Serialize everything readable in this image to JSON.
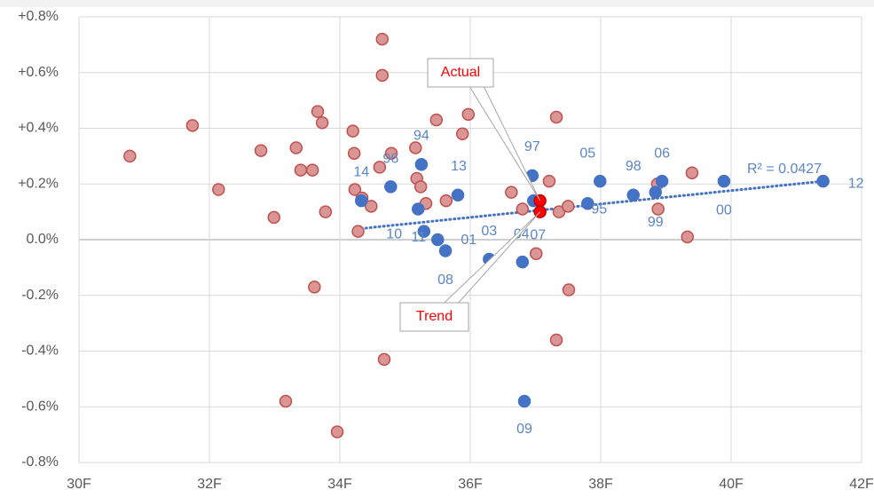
{
  "chart_data": {
    "type": "scatter",
    "xlim": [
      30,
      42
    ],
    "xticks": [
      {
        "value": 30,
        "label": "30F"
      },
      {
        "value": 32,
        "label": "32F"
      },
      {
        "value": 34,
        "label": "34F"
      },
      {
        "value": 36,
        "label": "36F"
      },
      {
        "value": 38,
        "label": "38F"
      },
      {
        "value": 40,
        "label": "40F"
      },
      {
        "value": 42,
        "label": "42F"
      }
    ],
    "ylim": [
      -0.8,
      0.8
    ],
    "yticks": [
      {
        "value": -0.8,
        "label": "-0.8%"
      },
      {
        "value": -0.6,
        "label": "-0.6%"
      },
      {
        "value": -0.4,
        "label": "-0.4%"
      },
      {
        "value": -0.2,
        "label": "-0.2%"
      },
      {
        "value": 0,
        "label": "0.0%"
      },
      {
        "value": 0.2,
        "label": "+0.2%"
      },
      {
        "value": 0.4,
        "label": "+0.4%"
      },
      {
        "value": 0.6,
        "label": "+0.6%"
      },
      {
        "value": 0.8,
        "label": "+0.8%"
      }
    ],
    "grid": true,
    "series": [
      {
        "color": "#c0504d",
        "fill": "#d99694",
        "x": [
          30.78,
          31.74,
          32.14,
          32.79,
          32.99,
          33.17,
          33.33,
          33.4,
          33.58,
          33.61,
          33.66,
          33.73,
          33.78,
          33.96,
          34.2,
          34.22,
          34.23,
          34.28,
          34.34,
          34.48,
          34.61,
          34.65,
          34.65,
          34.68,
          34.79,
          35.16,
          35.18,
          35.24,
          35.32,
          35.48,
          35.63,
          35.88,
          35.97,
          36.63,
          36.8,
          37.01,
          37.21,
          37.32,
          37.32,
          37.36,
          37.5,
          37.51,
          38.87,
          38.88,
          39.4,
          39.33
        ],
        "values": [
          0.3,
          0.41,
          0.18,
          0.32,
          0.08,
          -0.58,
          0.33,
          0.25,
          0.25,
          -0.17,
          0.46,
          0.42,
          0.1,
          -0.69,
          0.39,
          0.31,
          0.18,
          0.03,
          0.15,
          0.12,
          0.26,
          0.72,
          0.59,
          -0.43,
          0.31,
          0.33,
          0.22,
          0.19,
          0.13,
          0.43,
          0.14,
          0.38,
          0.45,
          0.17,
          0.11,
          -0.05,
          0.21,
          0.44,
          -0.36,
          0.1,
          0.12,
          -0.18,
          0.2,
          0.11,
          0.24,
          0.01
        ]
      },
      {
        "color": "#4472c4",
        "fill": "#4472c4",
        "x": [
          34.33,
          34.78,
          35.25,
          35.2,
          35.29,
          35.5,
          35.62,
          35.81,
          36.29,
          36.8,
          36.83,
          36.95,
          36.97,
          37.8,
          37.99,
          38.5,
          38.84,
          38.94,
          39.89,
          41.41
        ],
        "values": [
          0.14,
          0.19,
          0.27,
          0.11,
          0.03,
          0.0,
          -0.04,
          0.16,
          -0.07,
          -0.08,
          -0.58,
          0.23,
          0.14,
          0.13,
          0.21,
          0.16,
          0.17,
          0.21,
          0.21,
          0.21
        ],
        "labels": [
          "14",
          "96",
          "94",
          "10",
          "11",
          "01",
          "08",
          "13",
          "03",
          "04",
          "09",
          "97",
          "07",
          "95",
          "05",
          "98",
          "99",
          "06",
          "00",
          "12"
        ]
      },
      {
        "color": "#c00000",
        "fill": "#ff0000",
        "x": [
          37.07,
          37.07
        ],
        "values": [
          0.14,
          0.1
        ]
      }
    ],
    "trendline": {
      "color": "#4472c4",
      "x": [
        34.33,
        41.41
      ],
      "values": [
        0.04,
        0.21
      ],
      "label": "R² = 0.0427"
    },
    "annotations": [
      "Actual",
      "Trend"
    ]
  }
}
